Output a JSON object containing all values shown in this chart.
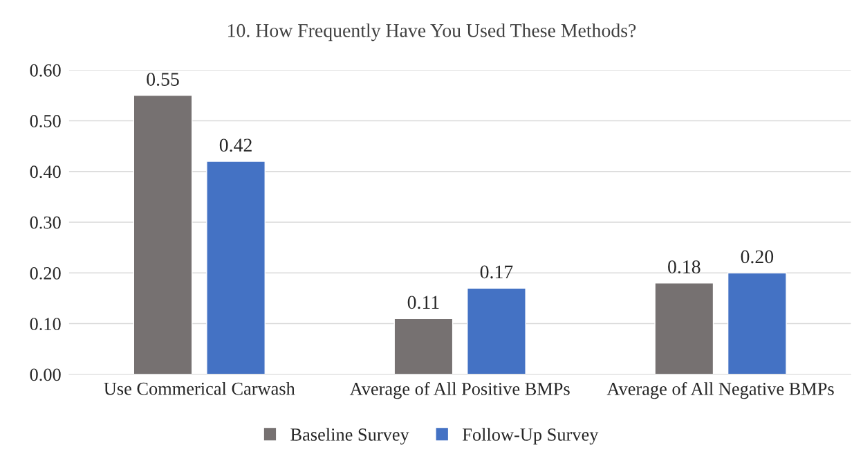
{
  "chart_data": {
    "type": "bar",
    "title": "10. How Frequently Have You Used These Methods?",
    "categories": [
      "Use Commerical Carwash",
      "Average of All Positive BMPs",
      "Average of All Negative BMPs"
    ],
    "series": [
      {
        "name": "Baseline Survey",
        "color": "#767171",
        "values": [
          0.55,
          0.11,
          0.18
        ],
        "value_labels": [
          "0.55",
          "0.11",
          "0.18"
        ]
      },
      {
        "name": "Follow-Up Survey",
        "color": "#4472c4",
        "values": [
          0.42,
          0.17,
          0.2
        ],
        "value_labels": [
          "0.42",
          "0.17",
          "0.20"
        ]
      }
    ],
    "ylim": [
      0,
      0.6
    ],
    "yticks": [
      {
        "value": 0,
        "label": "0.00"
      },
      {
        "value": 0.1,
        "label": "0.10"
      },
      {
        "value": 0.2,
        "label": "0.20"
      },
      {
        "value": 0.3,
        "label": "0.30"
      },
      {
        "value": 0.4,
        "label": "0.40"
      },
      {
        "value": 0.5,
        "label": "0.50"
      },
      {
        "value": 0.6,
        "label": "0.60"
      }
    ],
    "grid": "y",
    "legend": "bottom"
  }
}
